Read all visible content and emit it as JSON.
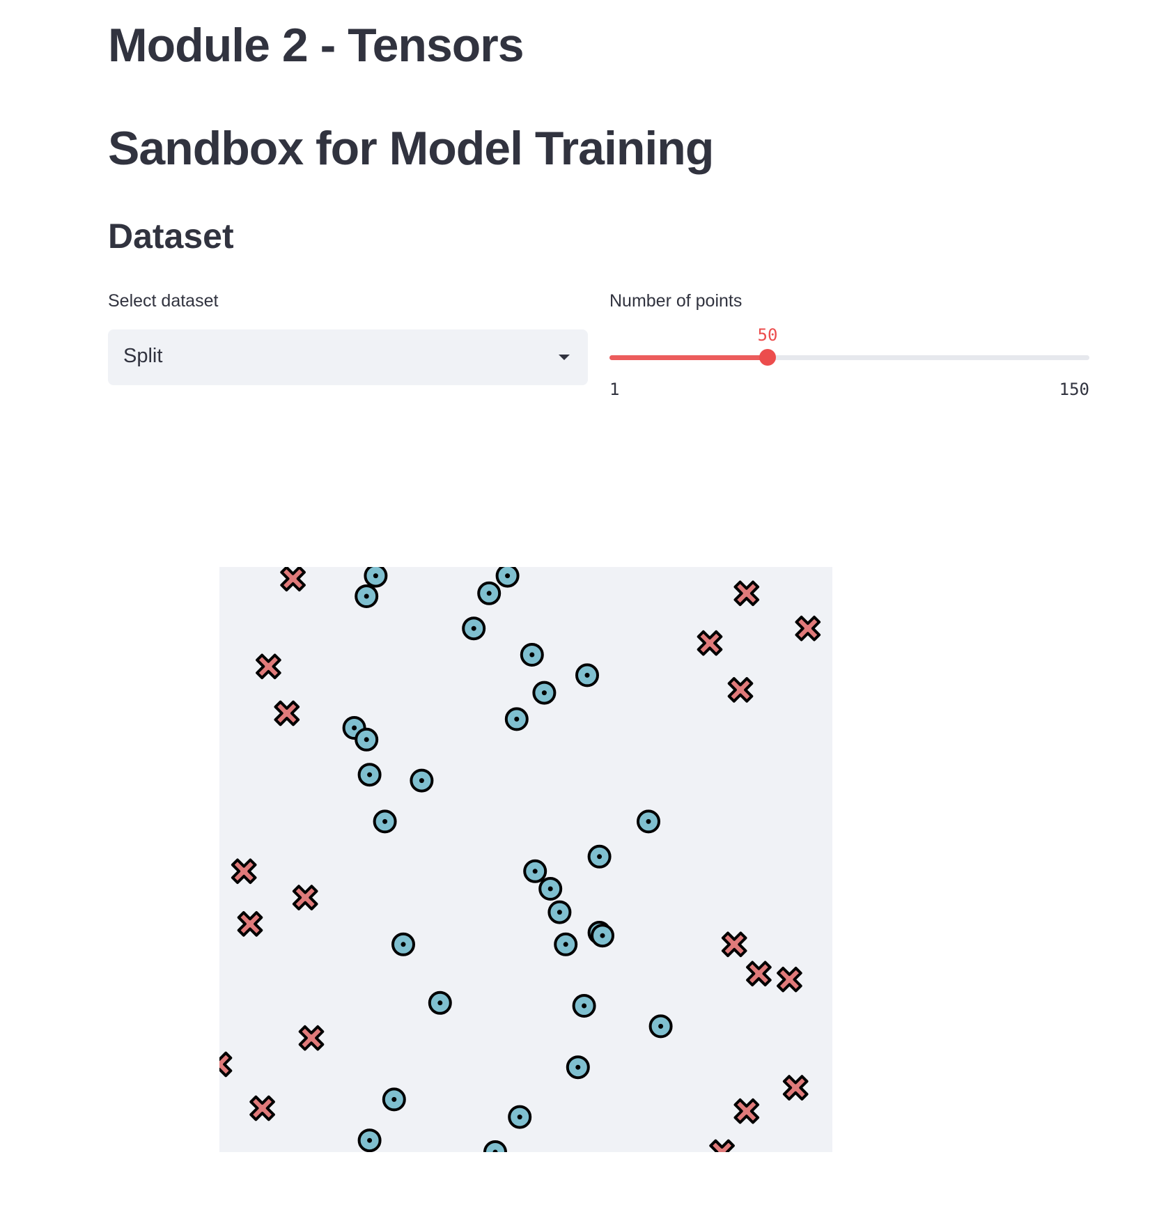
{
  "page": {
    "title": "Module 2 - Tensors",
    "subtitle": "Sandbox for Model Training"
  },
  "dataset": {
    "heading": "Dataset",
    "select_label": "Select dataset",
    "select_value": "Split",
    "slider_label": "Number of points",
    "slider_min": "1",
    "slider_max": "150",
    "slider_value": "50",
    "slider_fraction": 0.329
  },
  "colors": {
    "accent": "#ec4d4d",
    "plot_background": "#f0f2f6",
    "class_0_fill": "#e07a7a",
    "class_1_fill": "#7fbfcf",
    "marker_outline": "#000000"
  },
  "chart_data": {
    "type": "scatter",
    "xlim": [
      0,
      1
    ],
    "ylim": [
      0,
      1
    ],
    "grid": false,
    "legend": "none",
    "series": [
      {
        "marker": "x",
        "points": [
          [
            0.12,
            0.98
          ],
          [
            0.08,
            0.83
          ],
          [
            0.11,
            0.75
          ],
          [
            0.04,
            0.48
          ],
          [
            0.14,
            0.435
          ],
          [
            0.05,
            0.39
          ],
          [
            0.15,
            0.195
          ],
          [
            0.0,
            0.15
          ],
          [
            0.07,
            0.075
          ],
          [
            0.86,
            0.955
          ],
          [
            0.96,
            0.895
          ],
          [
            0.8,
            0.87
          ],
          [
            0.85,
            0.79
          ],
          [
            0.84,
            0.355
          ],
          [
            0.88,
            0.305
          ],
          [
            0.93,
            0.295
          ],
          [
            0.94,
            0.11
          ],
          [
            0.86,
            0.07
          ],
          [
            0.82,
            0.0
          ]
        ]
      },
      {
        "marker": "o",
        "points": [
          [
            0.255,
            0.985
          ],
          [
            0.24,
            0.95
          ],
          [
            0.47,
            0.985
          ],
          [
            0.44,
            0.955
          ],
          [
            0.415,
            0.895
          ],
          [
            0.51,
            0.85
          ],
          [
            0.6,
            0.815
          ],
          [
            0.53,
            0.785
          ],
          [
            0.485,
            0.74
          ],
          [
            0.22,
            0.725
          ],
          [
            0.24,
            0.705
          ],
          [
            0.245,
            0.645
          ],
          [
            0.33,
            0.635
          ],
          [
            0.27,
            0.565
          ],
          [
            0.7,
            0.565
          ],
          [
            0.62,
            0.505
          ],
          [
            0.515,
            0.48
          ],
          [
            0.54,
            0.45
          ],
          [
            0.555,
            0.41
          ],
          [
            0.62,
            0.375
          ],
          [
            0.565,
            0.355
          ],
          [
            0.3,
            0.355
          ],
          [
            0.36,
            0.255
          ],
          [
            0.595,
            0.25
          ],
          [
            0.72,
            0.215
          ],
          [
            0.585,
            0.145
          ],
          [
            0.285,
            0.09
          ],
          [
            0.49,
            0.06
          ],
          [
            0.245,
            0.02
          ],
          [
            0.45,
            0.0
          ],
          [
            0.625,
            0.37
          ]
        ]
      }
    ]
  }
}
